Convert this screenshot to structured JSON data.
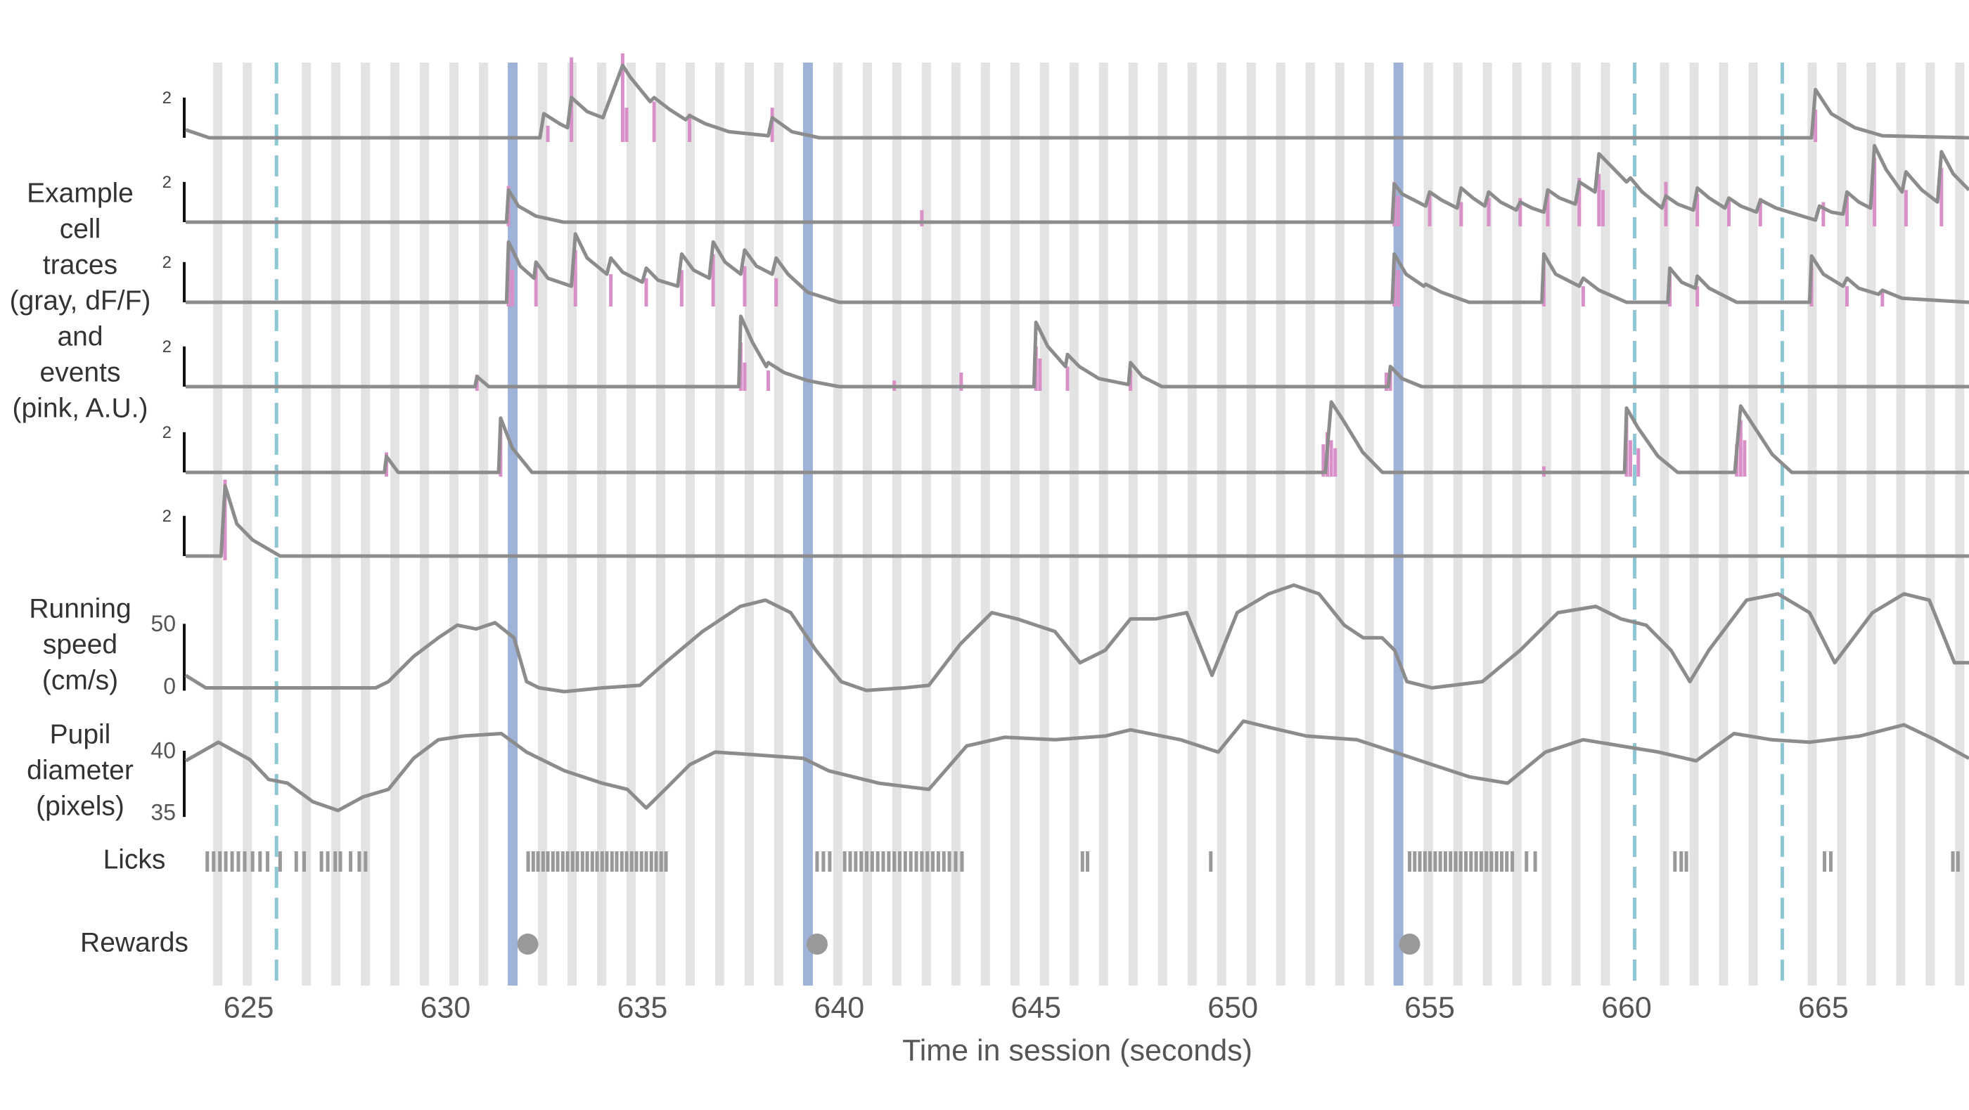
{
  "chart_data": {
    "type": "line",
    "xlabel": "Time in session (seconds)",
    "xlim": [
      623.4,
      668.7
    ],
    "xticks": [
      625,
      630,
      635,
      640,
      645,
      650,
      655,
      660,
      665
    ],
    "flashes": {
      "color": "#e3e3e3",
      "x": [
        624.1,
        624.85,
        626.35,
        627.1,
        627.85,
        628.6,
        629.35,
        630.1,
        630.85,
        632.35,
        633.1,
        633.85,
        634.6,
        635.35,
        636.1,
        636.85,
        637.6,
        638.35,
        639.85,
        640.6,
        641.35,
        642.1,
        642.85,
        643.6,
        644.35,
        645.1,
        645.85,
        646.6,
        647.35,
        648.1,
        648.85,
        649.6,
        650.35,
        651.1,
        651.85,
        652.6,
        653.35,
        654.85,
        655.6,
        656.35,
        657.1,
        657.85,
        658.6,
        659.35,
        660.85,
        661.6,
        662.35,
        663.1,
        664.6,
        665.35,
        666.1,
        666.85,
        667.6,
        668.35
      ]
    },
    "changes": {
      "color": "#9fb3d9",
      "x": [
        631.6,
        639.1,
        654.1
      ]
    },
    "omissions": {
      "color": "#8ec6d6",
      "x": [
        625.6,
        660.1,
        663.85
      ]
    },
    "cells": {
      "label": [
        "Example",
        "cell",
        "traces",
        "(gray, dF/F)",
        "and",
        "events",
        "(pink, A.U.)"
      ],
      "scale_bar": 2,
      "color": "#8c8c8c",
      "event_color": "#d98fc8",
      "series": [
        {
          "x": [
            623.4,
            624,
            632.4,
            632.5,
            632.9,
            633.1,
            633.2,
            633.6,
            634.0,
            634.5,
            634.7,
            635.2,
            635.3,
            635.7,
            636.1,
            636.2,
            636.6,
            637.2,
            638.2,
            638.3,
            638.8,
            639.5,
            664.7,
            664.8,
            665.2,
            665.8,
            666.5,
            668.7
          ],
          "values": [
            0.4,
            0,
            0,
            1.2,
            0.7,
            0.5,
            2.0,
            1.3,
            1.0,
            3.6,
            3.0,
            1.8,
            2.0,
            1.4,
            0.9,
            1.1,
            0.7,
            0.3,
            0.1,
            1.0,
            0.3,
            0,
            0,
            2.4,
            1.2,
            0.5,
            0.1,
            0
          ],
          "events": {
            "x": [
              632.6,
              633.2,
              634.5,
              634.6,
              635.3,
              636.2,
              638.3,
              664.8
            ],
            "values": [
              0.6,
              4.0,
              4.2,
              1.5,
              1.8,
              1.2,
              1.5,
              1.4
            ]
          }
        },
        {
          "x": [
            623.4,
            631.55,
            631.6,
            631.85,
            632.3,
            633,
            654.05,
            654.1,
            654.3,
            654.9,
            655.0,
            655.3,
            655.7,
            655.8,
            656.1,
            656.4,
            656.5,
            656.8,
            657.2,
            657.3,
            657.6,
            657.9,
            658.0,
            658.3,
            658.7,
            658.8,
            659.2,
            659.3,
            659.7,
            660.0,
            660.1,
            660.4,
            660.9,
            661.0,
            661.3,
            661.7,
            661.8,
            662.1,
            662.5,
            662.6,
            662.9,
            663.3,
            663.4,
            663.8,
            664.8,
            664.9,
            665.2,
            665.5,
            665.6,
            665.9,
            666.2,
            666.3,
            666.6,
            667.0,
            667.1,
            667.5,
            667.9,
            668.0,
            668.3,
            668.7
          ],
          "values": [
            0,
            0,
            1.6,
            0.8,
            0.3,
            0,
            0,
            1.9,
            1.4,
            0.8,
            1.5,
            1.1,
            0.7,
            1.7,
            1.2,
            0.8,
            1.5,
            1.0,
            0.6,
            1.0,
            0.7,
            0.5,
            1.6,
            1.2,
            0.9,
            2.0,
            1.5,
            3.4,
            2.6,
            2.0,
            2.2,
            1.5,
            0.7,
            1.3,
            0.9,
            0.6,
            1.7,
            1.2,
            0.7,
            1.2,
            0.8,
            0.5,
            1.1,
            0.7,
            0.1,
            0.8,
            0.5,
            0.4,
            1.5,
            1.0,
            0.7,
            3.8,
            2.6,
            1.5,
            2.5,
            1.6,
            1.0,
            3.5,
            2.4,
            1.6
          ],
          "events": {
            "x": [
              631.6,
              642.1,
              654.1,
              654.2,
              655.0,
              655.8,
              656.5,
              657.3,
              658.0,
              658.8,
              659.3,
              659.4,
              661.0,
              661.8,
              662.6,
              663.4,
              665.0,
              665.6,
              666.3,
              667.1,
              668.0
            ],
            "values": [
              1.8,
              0.6,
              2.0,
              1.3,
              1.4,
              1.0,
              1.2,
              1.2,
              1.6,
              2.2,
              2.4,
              1.6,
              2.0,
              1.4,
              1.2,
              1.2,
              1.0,
              1.4,
              3.2,
              1.6,
              2.7
            ]
          }
        },
        {
          "x": [
            623.4,
            631.55,
            631.6,
            631.9,
            632.25,
            632.3,
            632.6,
            633.2,
            633.3,
            633.6,
            634.1,
            634.2,
            634.5,
            635.0,
            635.1,
            635.4,
            635.9,
            636.0,
            636.3,
            636.7,
            636.8,
            637.1,
            637.5,
            637.6,
            637.9,
            638.3,
            638.4,
            638.7,
            639.2,
            640,
            654.05,
            654.1,
            654.4,
            654.85,
            654.9,
            655.3,
            656,
            657.85,
            657.9,
            658.2,
            658.8,
            658.9,
            659.3,
            660,
            661.05,
            661.1,
            661.4,
            661.75,
            661.8,
            662.1,
            662.8,
            664.65,
            664.7,
            665.0,
            665.5,
            665.6,
            665.9,
            666.4,
            666.5,
            667,
            668.7
          ],
          "values": [
            0,
            0,
            3.0,
            1.8,
            1.2,
            2.0,
            1.2,
            0.8,
            3.4,
            2.2,
            1.4,
            2.2,
            1.5,
            1.0,
            1.7,
            1.1,
            0.8,
            2.4,
            1.6,
            1.2,
            3.0,
            2.0,
            1.4,
            2.6,
            1.8,
            1.4,
            2.2,
            1.4,
            0.5,
            0,
            0,
            2.4,
            1.4,
            0.8,
            0.9,
            0.5,
            0,
            0,
            2.4,
            1.4,
            0.8,
            1.2,
            0.6,
            0,
            0,
            1.7,
            1.0,
            0.7,
            1.3,
            0.7,
            0,
            0,
            2.3,
            1.4,
            0.8,
            1.2,
            0.7,
            0.4,
            0.6,
            0.2,
            0
          ],
          "events": {
            "x": [
              631.6,
              631.7,
              632.3,
              633.3,
              634.2,
              635.1,
              636.0,
              636.8,
              637.6,
              638.4,
              654.1,
              654.2,
              657.9,
              658.9,
              661.1,
              661.8,
              664.7,
              665.6,
              666.5
            ],
            "values": [
              3.0,
              1.6,
              1.8,
              2.6,
              1.4,
              1.2,
              1.6,
              2.4,
              1.8,
              1.2,
              2.2,
              1.6,
              2.0,
              0.8,
              1.4,
              0.8,
              1.8,
              0.8,
              0.5
            ]
          }
        },
        {
          "x": [
            623.4,
            630.75,
            630.8,
            631.1,
            637.45,
            637.5,
            637.8,
            638.15,
            638.2,
            638.6,
            639.2,
            640,
            644.95,
            645.0,
            645.3,
            645.75,
            645.8,
            646.1,
            646.6,
            647.35,
            647.4,
            647.7,
            648.2,
            653.95,
            654.0,
            654.3,
            654.8,
            668.7
          ],
          "values": [
            0,
            0,
            0.5,
            0,
            0,
            3.5,
            2.2,
            1.0,
            1.2,
            0.7,
            0.3,
            0,
            0,
            3.2,
            2.0,
            1.0,
            1.6,
            1.0,
            0.4,
            0.1,
            1.2,
            0.5,
            0,
            0,
            1.0,
            0.4,
            0,
            0
          ],
          "events": {
            "x": [
              630.8,
              637.5,
              637.6,
              638.2,
              641.4,
              643.1,
              645.0,
              645.1,
              645.8,
              647.4,
              653.9,
              654.0
            ],
            "values": [
              0.6,
              2.2,
              1.2,
              0.8,
              0.3,
              0.7,
              2.0,
              1.4,
              1.0,
              0.8,
              0.7,
              1.0
            ]
          }
        },
        {
          "x": [
            623.4,
            628.45,
            628.5,
            628.8,
            631.35,
            631.4,
            631.7,
            632.2,
            652.35,
            652.5,
            652.8,
            653.3,
            653.8,
            659.95,
            660.0,
            660.3,
            660.8,
            661.3,
            662.75,
            662.9,
            663.2,
            663.7,
            664.2,
            668.7
          ],
          "values": [
            0,
            0,
            0.8,
            0,
            0,
            2.7,
            1.2,
            0,
            0,
            3.5,
            2.6,
            1.0,
            0,
            0,
            3.2,
            2.2,
            0.8,
            0,
            0,
            3.3,
            2.4,
            0.9,
            0,
            0
          ],
          "events": {
            "x": [
              628.5,
              631.4,
              652.3,
              652.4,
              652.5,
              652.6,
              657.9,
              660.0,
              660.1,
              660.3,
              662.8,
              662.9,
              663.0
            ],
            "values": [
              1.0,
              2.2,
              1.4,
              2.0,
              1.6,
              1.2,
              0.3,
              2.8,
              1.6,
              1.2,
              1.4,
              2.6,
              1.6
            ]
          }
        },
        {
          "x": [
            623.4,
            624.3,
            624.4,
            624.7,
            625.1,
            625.8,
            668.7
          ],
          "values": [
            0,
            0,
            3.5,
            1.6,
            0.8,
            0,
            0
          ],
          "events": {
            "x": [
              624.4
            ],
            "values": [
              3.8
            ]
          }
        }
      ]
    },
    "running": {
      "label": [
        "Running",
        "speed",
        "(cm/s)"
      ],
      "ylim": [
        -7,
        90
      ],
      "yticks": [
        0,
        50
      ],
      "color": "#8c8c8c",
      "x": [
        623.4,
        623.91,
        628.23,
        628.55,
        629.19,
        629.82,
        630.3,
        630.78,
        631.26,
        631.74,
        632.06,
        632.38,
        633.02,
        633.98,
        634.94,
        635.58,
        636.53,
        637.49,
        638.13,
        638.77,
        639.41,
        640.05,
        640.69,
        641.65,
        642.28,
        643.08,
        643.88,
        644.52,
        645.48,
        646.12,
        646.76,
        647.4,
        648.04,
        648.83,
        649.47,
        650.11,
        650.91,
        651.55,
        652.19,
        652.83,
        653.31,
        653.79,
        654.11,
        654.42,
        655.06,
        656.34,
        657.3,
        658.26,
        659.22,
        659.86,
        660.5,
        661.13,
        661.61,
        662.09,
        663.05,
        663.85,
        664.65,
        665.29,
        666.25,
        667.05,
        667.69,
        668.33,
        668.7
      ],
      "values": [
        10,
        0,
        0,
        5,
        25,
        40,
        50,
        47,
        52,
        40,
        5,
        0,
        -3,
        0,
        2,
        20,
        45,
        65,
        70,
        60,
        30,
        5,
        -2,
        0,
        2,
        35,
        60,
        55,
        45,
        20,
        30,
        55,
        55,
        60,
        10,
        60,
        75,
        82,
        75,
        50,
        40,
        40,
        30,
        5,
        0,
        5,
        30,
        60,
        65,
        55,
        50,
        30,
        5,
        30,
        70,
        75,
        60,
        20,
        60,
        75,
        70,
        20,
        20
      ]
    },
    "pupil": {
      "label": [
        "Pupil",
        "diameter",
        "(pixels)"
      ],
      "ylim": [
        34.5,
        43
      ],
      "yticks": [
        35,
        40
      ],
      "color": "#8c8c8c",
      "x": [
        623.4,
        624.23,
        625.03,
        625.51,
        625.99,
        626.63,
        627.27,
        627.91,
        628.55,
        629.19,
        629.82,
        630.46,
        631.42,
        632.06,
        633.02,
        633.98,
        634.62,
        635.1,
        635.58,
        636.21,
        636.85,
        637.81,
        639.09,
        639.73,
        641.01,
        642.28,
        643.24,
        644.2,
        645.48,
        646.76,
        647.4,
        648.67,
        649.63,
        650.27,
        650.91,
        651.87,
        653.15,
        654.11,
        655.06,
        656.02,
        656.98,
        657.94,
        658.9,
        659.86,
        660.82,
        661.77,
        662.73,
        663.69,
        664.65,
        665.93,
        667.05,
        667.84,
        668.7
      ],
      "values": [
        39.3,
        40.8,
        39.4,
        37.8,
        37.5,
        36.0,
        35.3,
        36.4,
        37.0,
        39.5,
        41.0,
        41.3,
        41.5,
        40.0,
        38.5,
        37.5,
        37.0,
        35.5,
        37.0,
        39.0,
        40.0,
        39.8,
        39.5,
        38.5,
        37.5,
        37.0,
        40.5,
        41.2,
        41.0,
        41.3,
        41.8,
        41.0,
        40.0,
        42.5,
        42.0,
        41.3,
        41.0,
        40.0,
        39.0,
        38.0,
        37.5,
        40.0,
        41.0,
        40.5,
        40.0,
        39.3,
        41.5,
        41.0,
        40.8,
        41.3,
        42.2,
        41.0,
        39.5
      ]
    },
    "licks": {
      "label": "Licks",
      "color": "#999999",
      "x": [
        623.95,
        624.11,
        624.27,
        624.42,
        624.58,
        624.74,
        624.9,
        625.1,
        625.29,
        625.48,
        625.8,
        626.21,
        626.41,
        626.85,
        627.01,
        627.2,
        627.33,
        627.59,
        627.81,
        627.97,
        632.1,
        632.23,
        632.35,
        632.48,
        632.6,
        632.73,
        632.85,
        632.98,
        633.1,
        633.23,
        633.35,
        633.48,
        633.6,
        633.73,
        633.85,
        633.98,
        634.1,
        634.23,
        634.35,
        634.48,
        634.6,
        634.73,
        634.85,
        634.98,
        635.1,
        635.23,
        635.35,
        635.48,
        635.6,
        639.44,
        639.6,
        639.76,
        640.14,
        640.28,
        640.42,
        640.56,
        640.7,
        640.84,
        640.98,
        641.12,
        641.26,
        641.4,
        641.54,
        641.68,
        641.82,
        641.96,
        642.1,
        642.24,
        642.38,
        642.52,
        642.66,
        642.8,
        642.96,
        643.12,
        646.18,
        646.31,
        649.44,
        654.49,
        654.62,
        654.75,
        654.88,
        655.01,
        655.14,
        655.27,
        655.4,
        655.53,
        655.66,
        655.79,
        655.92,
        656.05,
        656.18,
        656.31,
        656.44,
        656.57,
        656.7,
        656.83,
        656.96,
        657.1,
        657.46,
        657.68,
        661.23,
        661.39,
        661.52,
        665.03,
        665.19,
        668.29,
        668.42
      ]
    },
    "rewards": {
      "label": "Rewards",
      "color": "#999999",
      "x": [
        632.09,
        639.44,
        654.49
      ]
    }
  }
}
